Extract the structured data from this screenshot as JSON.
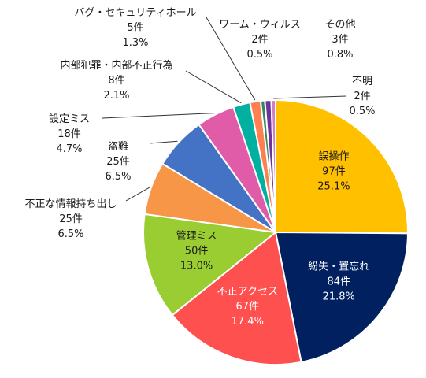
{
  "chart_data": {
    "type": "pie",
    "title": "",
    "start_angle_deg": 0,
    "direction": "clockwise",
    "slices": [
      {
        "name": "誤操作",
        "count": "97件",
        "value": 97,
        "percent": "25.1%",
        "color": "#FFC000",
        "label_color": "#1a1a1a",
        "label_inside": true
      },
      {
        "name": "紛失・置忘れ",
        "count": "84件",
        "value": 84,
        "percent": "21.8%",
        "color": "#002060",
        "label_color": "#ffffff",
        "label_inside": true
      },
      {
        "name": "不正アクセス",
        "count": "67件",
        "value": 67,
        "percent": "17.4%",
        "color": "#FF5050",
        "label_color": "#ffffff",
        "label_inside": true
      },
      {
        "name": "管理ミス",
        "count": "50件",
        "value": 50,
        "percent": "13.0%",
        "color": "#9ACD32",
        "label_color": "#1a1a1a",
        "label_inside": true
      },
      {
        "name": "不正な情報持ち出し",
        "count": "25件",
        "value": 25,
        "percent": "6.5%",
        "color": "#F79646",
        "label_color": "#1a1a1a",
        "label_inside": false
      },
      {
        "name": "盗難",
        "count": "25件",
        "value": 25,
        "percent": "6.5%",
        "color": "#4472C4",
        "label_color": "#1a1a1a",
        "label_inside": false
      },
      {
        "name": "設定ミス",
        "count": "18件",
        "value": 18,
        "percent": "4.7%",
        "color": "#E05CA8",
        "label_color": "#1a1a1a",
        "label_inside": false
      },
      {
        "name": "内部犯罪・内部不正行為",
        "count": "8件",
        "value": 8,
        "percent": "2.1%",
        "color": "#00B0A0",
        "label_color": "#1a1a1a",
        "label_inside": false
      },
      {
        "name": "バグ・セキュリティホール",
        "count": "5件",
        "value": 5,
        "percent": "1.3%",
        "color": "#FF7F50",
        "label_color": "#1a1a1a",
        "label_inside": false
      },
      {
        "name": "ワーム・ウィルス",
        "count": "2件",
        "value": 2,
        "percent": "0.5%",
        "color": "#2E8B57",
        "label_color": "#1a1a1a",
        "label_inside": false
      },
      {
        "name": "その他",
        "count": "3件",
        "value": 3,
        "percent": "0.8%",
        "color": "#7030A0",
        "label_color": "#1a1a1a",
        "label_inside": false
      },
      {
        "name": "不明",
        "count": "2件",
        "value": 2,
        "percent": "0.5%",
        "color": "#D080C0",
        "label_color": "#1a1a1a",
        "label_inside": false
      }
    ]
  }
}
